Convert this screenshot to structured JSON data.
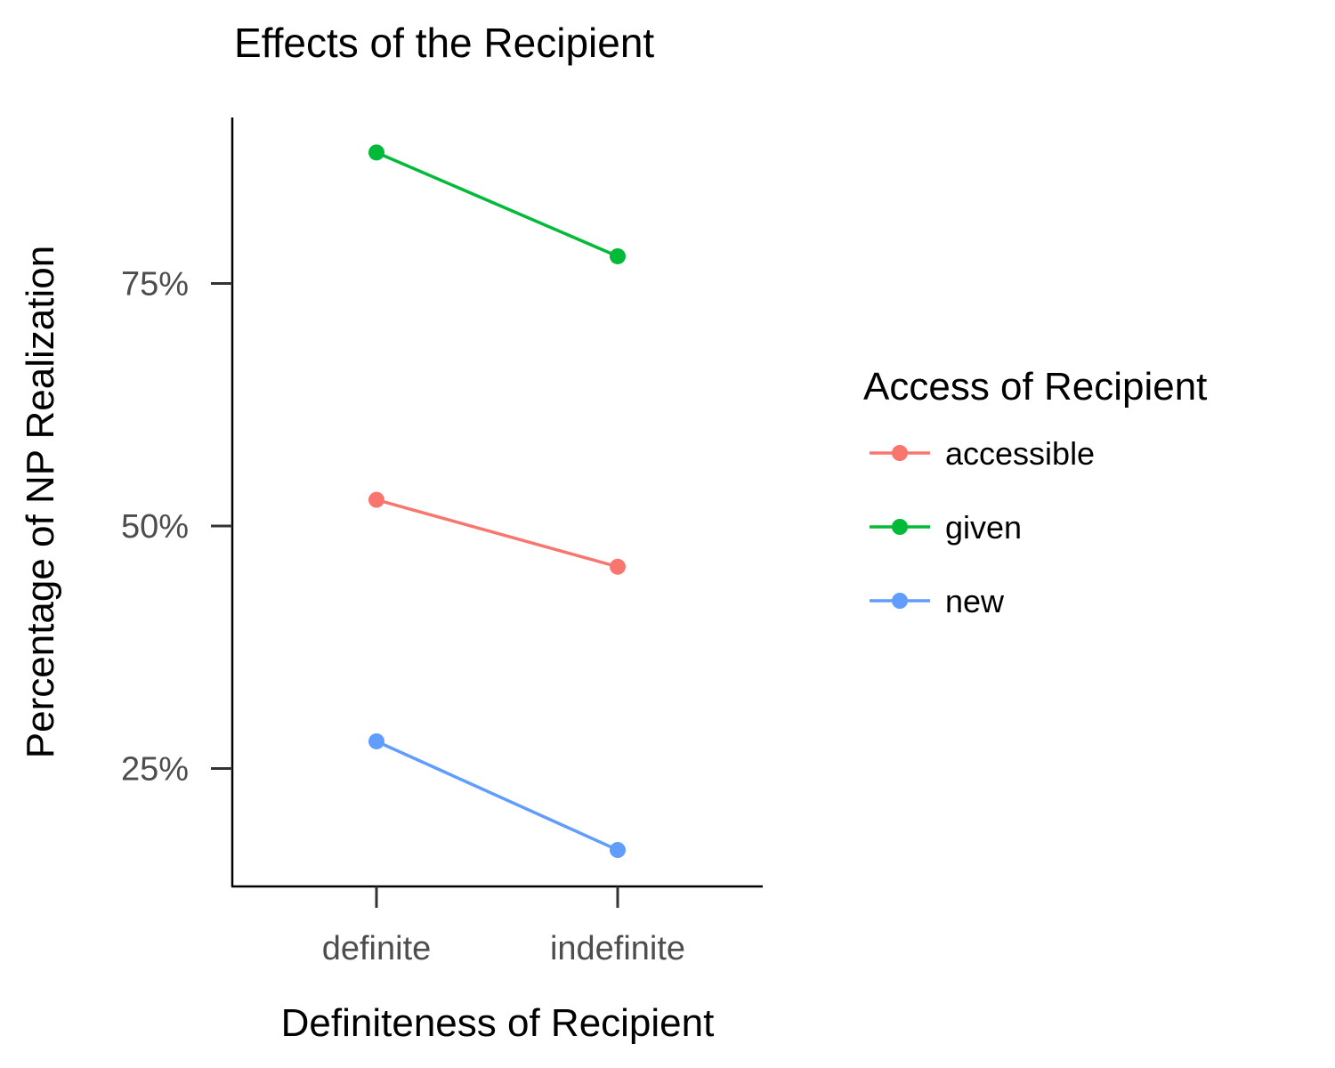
{
  "chart_data": {
    "type": "line",
    "title": "Effects of the Recipient",
    "xlabel": "Definiteness of Recipient",
    "ylabel": "Percentage of NP Realization",
    "categories": [
      "definite",
      "indefinite"
    ],
    "y_ticks": [
      0.25,
      0.5,
      0.75
    ],
    "y_tick_labels": [
      "25%",
      "50%",
      "75%"
    ],
    "ylim": [
      0.13,
      0.92
    ],
    "legend_title": "Access of Recipient",
    "legend_position": "right",
    "grid": false,
    "series": [
      {
        "name": "accessible",
        "color": "#F8766D",
        "values": [
          0.527,
          0.458
        ]
      },
      {
        "name": "given",
        "color": "#00BA38",
        "values": [
          0.885,
          0.778
        ]
      },
      {
        "name": "new",
        "color": "#619CFF",
        "values": [
          0.278,
          0.166
        ]
      }
    ]
  }
}
